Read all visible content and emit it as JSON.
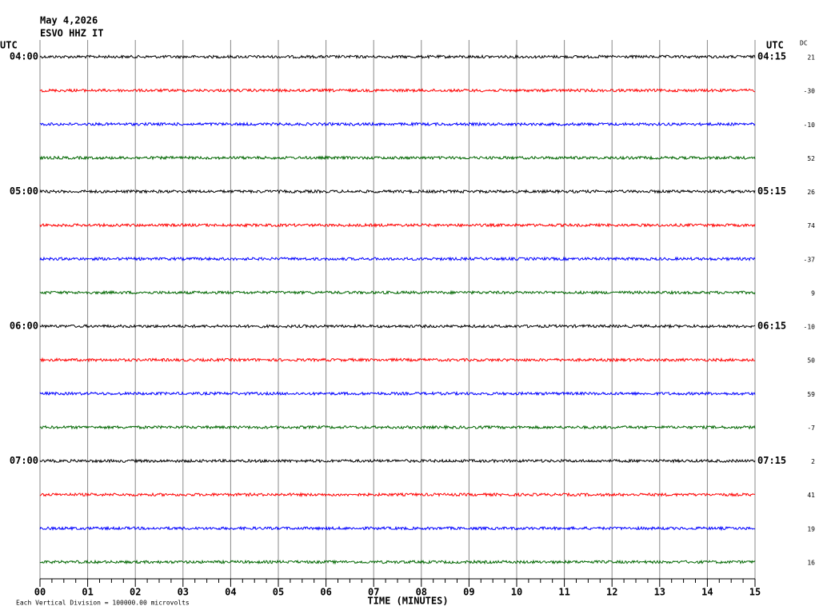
{
  "chart_data": {
    "type": "helicorder",
    "title": "May 4,2026",
    "subtitle": "ESVO HHZ IT",
    "left_axis_title": "UTC",
    "right_axis_title": "UTC",
    "dc_title": "DC",
    "categories": [
      "04:00",
      null,
      null,
      null,
      "05:00",
      null,
      null,
      null,
      "06:00",
      null,
      null,
      null,
      "07:00",
      null,
      null,
      null
    ],
    "right_labels": [
      "04:15",
      null,
      null,
      null,
      "05:15",
      null,
      null,
      null,
      "06:15",
      null,
      null,
      null,
      "07:15",
      null,
      null,
      null
    ],
    "dc_values": [
      21,
      -30,
      -10,
      52,
      26,
      74,
      -37,
      9,
      -10,
      50,
      59,
      -7,
      2,
      41,
      19,
      16
    ],
    "colors": [
      "#000000",
      "#ff0000",
      "#0000ff",
      "#006600"
    ],
    "x_label": "TIME (MINUTES)",
    "xlim": [
      0,
      15
    ],
    "xticks": [
      {
        "value": 0,
        "label": "00"
      },
      {
        "value": 1,
        "label": "01"
      },
      {
        "value": 2,
        "label": "02"
      },
      {
        "value": 3,
        "label": "03"
      },
      {
        "value": 4,
        "label": "04"
      },
      {
        "value": 5,
        "label": "05"
      },
      {
        "value": 6,
        "label": "06"
      },
      {
        "value": 7,
        "label": "07"
      },
      {
        "value": 8,
        "label": "08"
      },
      {
        "value": 9,
        "label": "09"
      },
      10,
      11,
      12,
      13,
      14,
      15
    ],
    "footnote": "Each Vertical Division = 100000.00 microvolts"
  }
}
